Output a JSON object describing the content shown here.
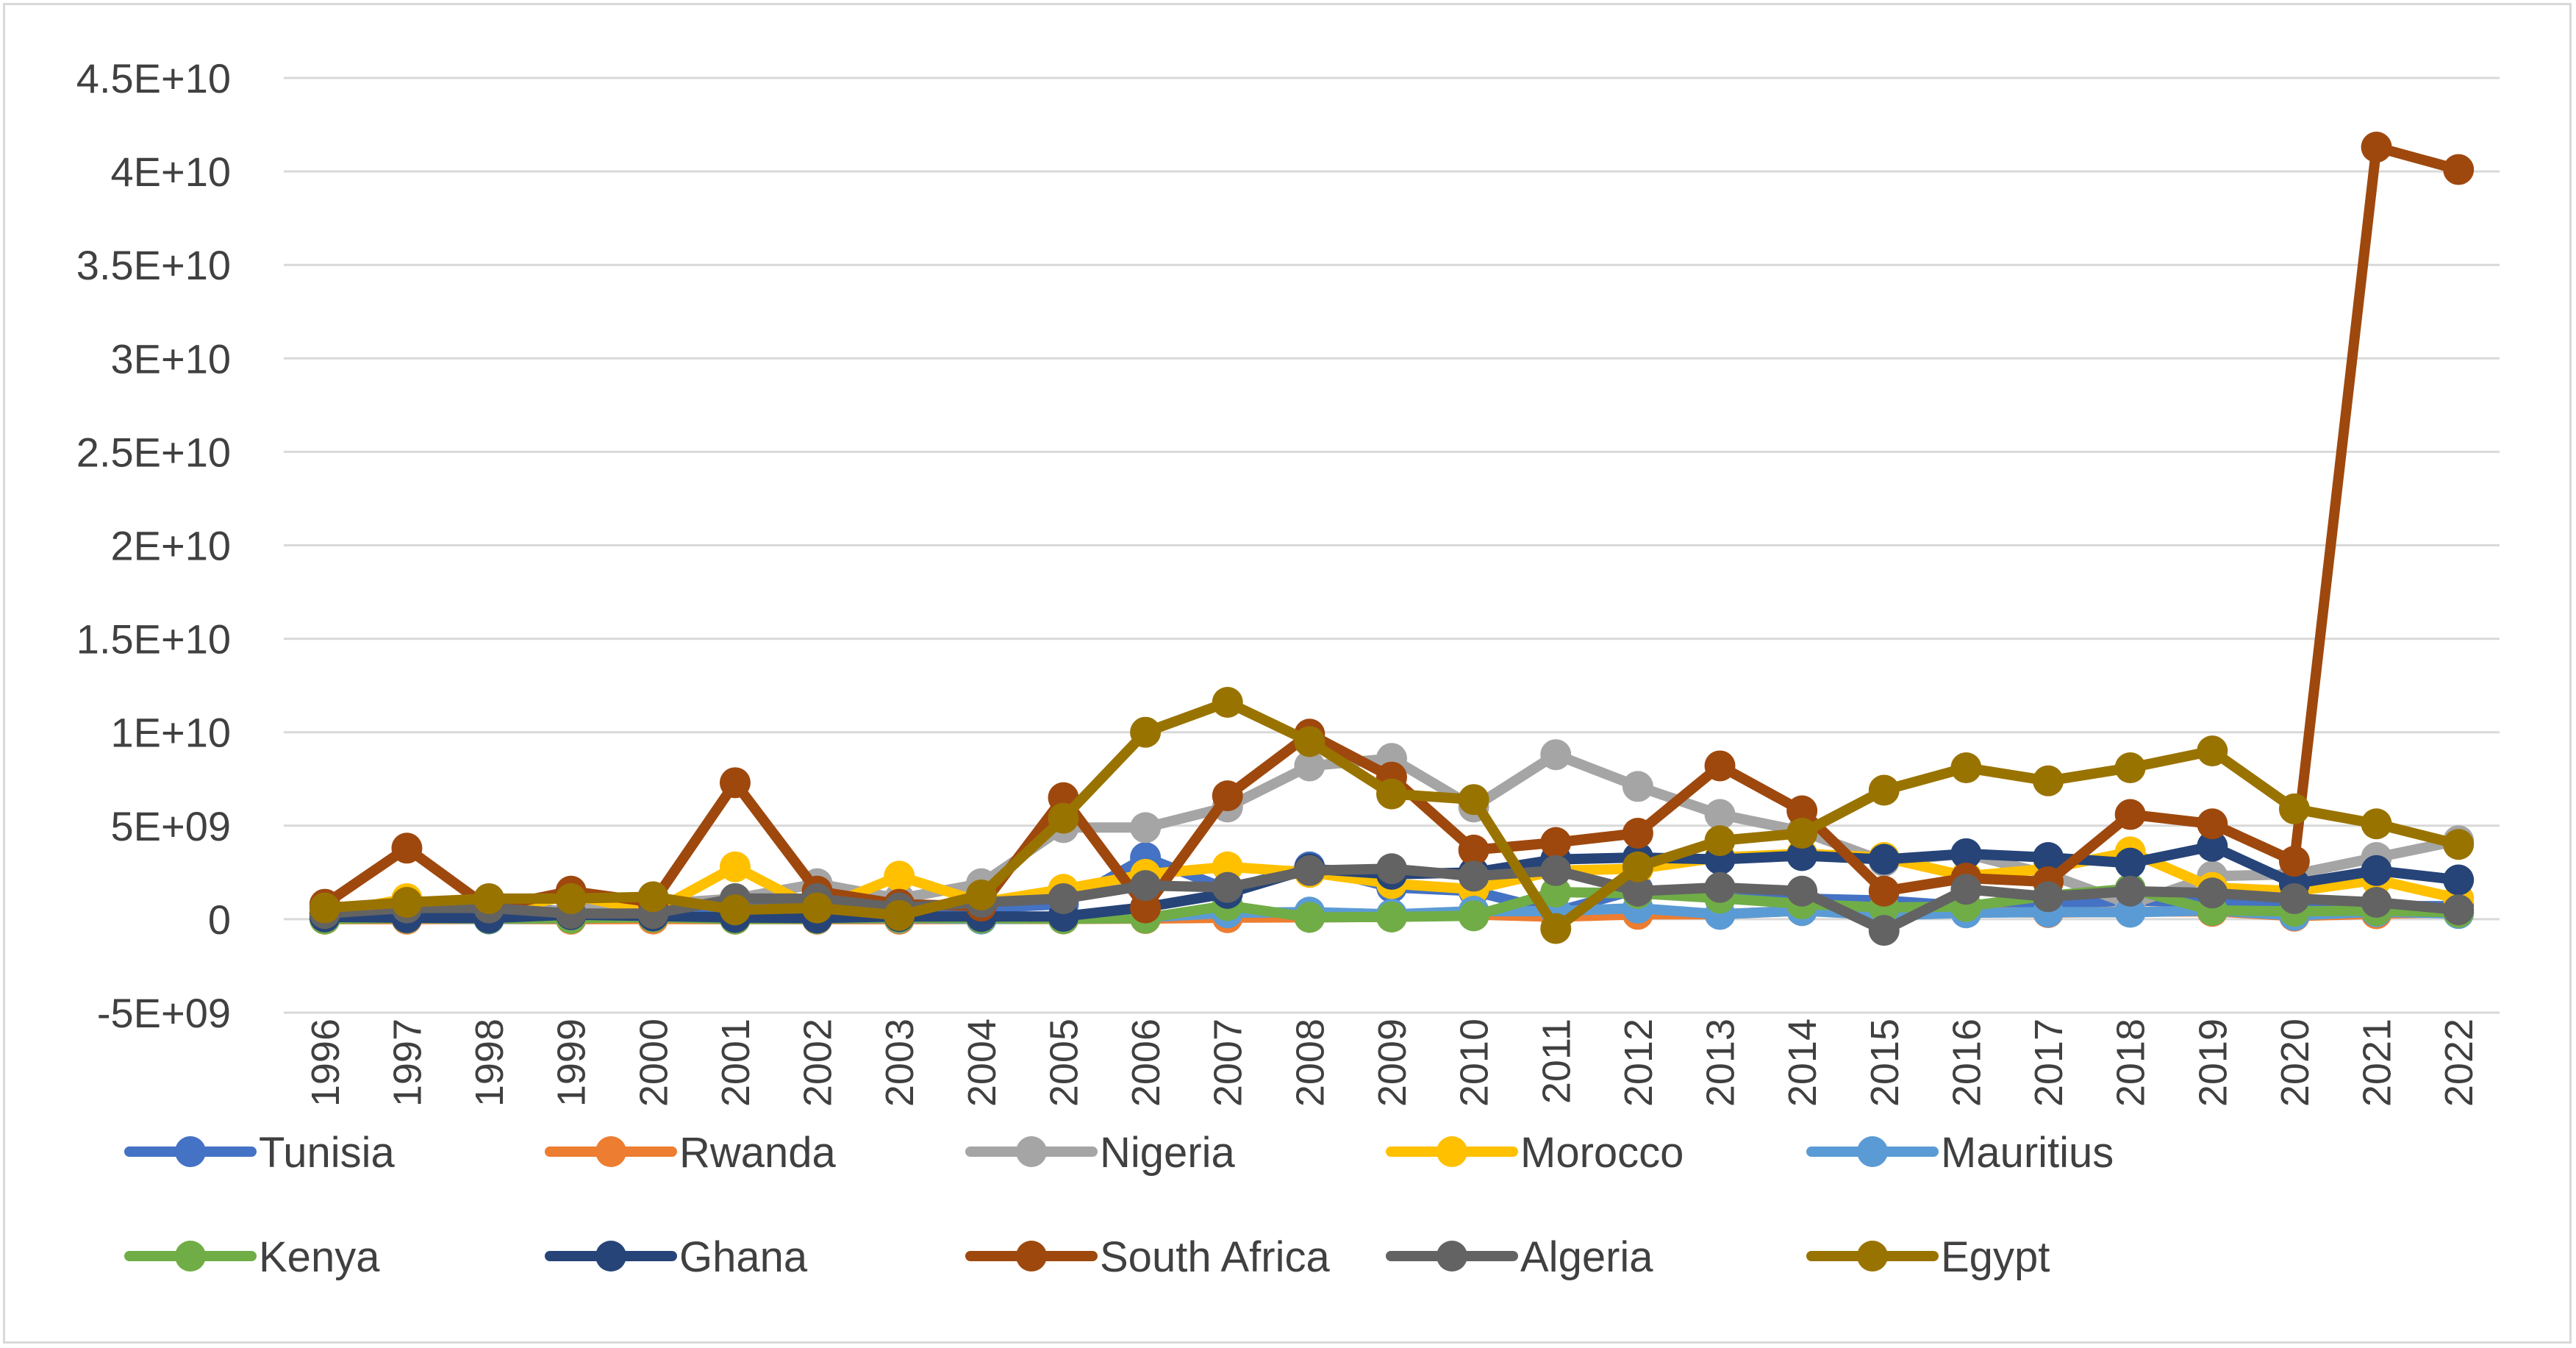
{
  "chart_data": {
    "type": "line",
    "title": "",
    "xlabel": "",
    "ylabel": "",
    "categories": [
      "1996",
      "1997",
      "1998",
      "1999",
      "2000",
      "2001",
      "2002",
      "2003",
      "2004",
      "2005",
      "2006",
      "2007",
      "2008",
      "2009",
      "2010",
      "2011",
      "2012",
      "2013",
      "2014",
      "2015",
      "2016",
      "2017",
      "2018",
      "2019",
      "2020",
      "2021",
      "2022"
    ],
    "ylim": [
      -5000000000,
      45000000000
    ],
    "yticks": [
      {
        "value": 45000000000,
        "label": "4.5E+10"
      },
      {
        "value": 40000000000,
        "label": "4E+10"
      },
      {
        "value": 35000000000,
        "label": "3.5E+10"
      },
      {
        "value": 30000000000,
        "label": "3E+10"
      },
      {
        "value": 25000000000,
        "label": "2.5E+10"
      },
      {
        "value": 20000000000,
        "label": "2E+10"
      },
      {
        "value": 15000000000,
        "label": "1.5E+10"
      },
      {
        "value": 10000000000,
        "label": "1E+10"
      },
      {
        "value": 5000000000,
        "label": "5E+09"
      },
      {
        "value": 0,
        "label": "0"
      },
      {
        "value": -5000000000,
        "label": "-5E+09"
      }
    ],
    "grid": true,
    "legend_position": "bottom",
    "series": [
      {
        "name": "Tunisia",
        "color": "#4472C4",
        "values": [
          300000000.0,
          400000000.0,
          700000000.0,
          400000000.0,
          800000000.0,
          500000000.0,
          800000000.0,
          600000000.0,
          600000000.0,
          800000000.0,
          3300000000.0,
          1600000000.0,
          2800000000.0,
          1700000000.0,
          1500000000.0,
          400000000.0,
          1600000000.0,
          1100000000.0,
          1100000000.0,
          1000000000.0,
          700000000.0,
          800000000.0,
          1000000000.0,
          900000000.0,
          600000000.0,
          700000000.0,
          700000000.0
        ]
      },
      {
        "name": "Rwanda",
        "color": "#ED7D31",
        "values": [
          0.0,
          0.0,
          10000000.0,
          0.0,
          10000000.0,
          0.0,
          0.0,
          0.0,
          10000000.0,
          10000000.0,
          30000000.0,
          80000000.0,
          100000000.0,
          120000000.0,
          250000000.0,
          120000000.0,
          260000000.0,
          260000000.0,
          460000000.0,
          380000000.0,
          400000000.0,
          350000000.0,
          400000000.0,
          420000000.0,
          160000000.0,
          290000000.0,
          370000000.0
        ]
      },
      {
        "name": "Nigeria",
        "color": "#A5A5A5",
        "values": [
          300000000.0,
          300000000.0,
          300000000.0,
          500000000.0,
          800000000.0,
          1100000000.0,
          1900000000.0,
          1100000000.0,
          1900000000.0,
          4900000000.0,
          4900000000.0,
          6000000000.0,
          8200000000.0,
          8600000000.0,
          6000000000.0,
          8800000000.0,
          7100000000.0,
          5600000000.0,
          4700000000.0,
          3100000000.0,
          3500000000.0,
          2400000000.0,
          800000000.0,
          2300000000.0,
          2400000000.0,
          3300000000.0,
          4200000000.0
        ]
      },
      {
        "name": "Morocco",
        "color": "#FFC000",
        "values": [
          300000000.0,
          1100000000.0,
          300000000.0,
          1300000000.0,
          400000000.0,
          2800000000.0,
          500000000.0,
          2300000000.0,
          900000000.0,
          1600000000.0,
          2400000000.0,
          2800000000.0,
          2500000000.0,
          1900000000.0,
          1600000000.0,
          2600000000.0,
          2700000000.0,
          3300000000.0,
          3500000000.0,
          3300000000.0,
          2300000000.0,
          2700000000.0,
          3600000000.0,
          1700000000.0,
          1500000000.0,
          2100000000.0,
          1100000000.0
        ]
      },
      {
        "name": "Mauritius",
        "color": "#5B9BD5",
        "values": [
          40000000.0,
          60000000.0,
          10000000.0,
          50000000.0,
          270000000.0,
          20000000.0,
          30000000.0,
          60000000.0,
          10000000.0,
          40000000.0,
          100000000.0,
          340000000.0,
          380000000.0,
          260000000.0,
          430000000.0,
          430000000.0,
          590000000.0,
          260000000.0,
          460000000.0,
          210000000.0,
          340000000.0,
          380000000.0,
          370000000.0,
          470000000.0,
          200000000.0,
          400000000.0,
          300000000.0
        ]
      },
      {
        "name": "Kenya",
        "color": "#70AD47",
        "values": [
          10000000.0,
          60000000.0,
          30000000.0,
          50000000.0,
          110000000.0,
          10000000.0,
          30000000.0,
          80000000.0,
          50000000.0,
          20000000.0,
          50000000.0,
          730000000.0,
          100000000.0,
          120000000.0,
          180000000.0,
          1450000000.0,
          1380000000.0,
          1120000000.0,
          820000000.0,
          620000000.0,
          680000000.0,
          1260000000.0,
          1630000000.0,
          470000000.0,
          420000000.0,
          460000000.0,
          360000000.0
        ]
      },
      {
        "name": "Ghana",
        "color": "#264478",
        "values": [
          120000000.0,
          80000000.0,
          60000000.0,
          240000000.0,
          170000000.0,
          90000000.0,
          60000000.0,
          140000000.0,
          140000000.0,
          150000000.0,
          640000000.0,
          1380000000.0,
          2700000000.0,
          2400000000.0,
          2500000000.0,
          3200000000.0,
          3300000000.0,
          3200000000.0,
          3400000000.0,
          3200000000.0,
          3500000000.0,
          3300000000.0,
          3000000000.0,
          3900000000.0,
          1900000000.0,
          2600000000.0,
          2100000000.0
        ]
      },
      {
        "name": "South Africa",
        "color": "#9E480E",
        "values": [
          800000000.0,
          3800000000.0,
          600000000.0,
          1500000000.0,
          900000000.0,
          7300000000.0,
          1500000000.0,
          800000000.0,
          700000000.0,
          6500000000.0,
          600000000.0,
          6600000000.0,
          9900000000.0,
          7600000000.0,
          3700000000.0,
          4100000000.0,
          4600000000.0,
          8200000000.0,
          5800000000.0,
          1500000000.0,
          2200000000.0,
          2000000000.0,
          5600000000.0,
          5100000000.0,
          3100000000.0,
          41300000000.0,
          40100000000.0
        ]
      },
      {
        "name": "Algeria",
        "color": "#636363",
        "values": [
          300000000.0,
          600000000.0,
          600000000.0,
          300000000.0,
          300000000.0,
          1100000000.0,
          1100000000.0,
          600000000.0,
          900000000.0,
          1100000000.0,
          1800000000.0,
          1700000000.0,
          2600000000.0,
          2700000000.0,
          2300000000.0,
          2600000000.0,
          1500000000.0,
          1700000000.0,
          1500000000.0,
          -600000000.0,
          1600000000.0,
          1200000000.0,
          1500000000.0,
          1400000000.0,
          1100000000.0,
          900000000.0,
          500000000.0
        ]
      },
      {
        "name": "Egypt",
        "color": "#997300",
        "values": [
          600000000.0,
          900000000.0,
          1100000000.0,
          1100000000.0,
          1200000000.0,
          500000000.0,
          600000000.0,
          200000000.0,
          1300000000.0,
          5400000000.0,
          10000000000.0,
          11600000000.0,
          9500000000.0,
          6700000000.0,
          6400000000.0,
          -500000000.0,
          2800000000.0,
          4200000000.0,
          4600000000.0,
          6900000000.0,
          8100000000.0,
          7400000000.0,
          8100000000.0,
          9000000000.0,
          5900000000.0,
          5100000000.0,
          4000000000.0
        ]
      }
    ]
  }
}
